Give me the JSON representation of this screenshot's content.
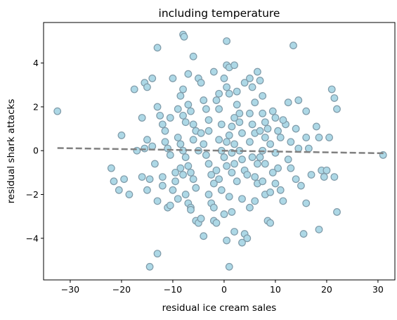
{
  "chart_data": {
    "type": "scatter",
    "title": "including temperature",
    "xlabel": "residual ice cream sales",
    "ylabel": "residual shark attacks",
    "xlim": [
      -35.2,
      33.3
    ],
    "ylim": [
      -5.9,
      5.85
    ],
    "xticks": [
      -30,
      -20,
      -10,
      0,
      10,
      20,
      30
    ],
    "xtick_labels": [
      "−30",
      "−20",
      "−10",
      "0",
      "10",
      "20",
      "30"
    ],
    "yticks": [
      -4,
      -2,
      0,
      2,
      4
    ],
    "ytick_labels": [
      "−4",
      "−2",
      "0",
      "2",
      "4"
    ],
    "grid": false,
    "legend": "none",
    "marker_fill": "#add8e6",
    "marker_edge": "#7f9aa8",
    "trend_color": "#808080",
    "trend_line": {
      "x": [
        -32.5,
        31.5
      ],
      "y": [
        0.12,
        -0.12
      ]
    },
    "points": [
      [
        -32.5,
        1.8
      ],
      [
        -22,
        -0.8
      ],
      [
        -21.5,
        -1.4
      ],
      [
        -20.5,
        -1.8
      ],
      [
        -19.5,
        -1.3
      ],
      [
        -20,
        0.7
      ],
      [
        -18.5,
        -2.0
      ],
      [
        -17.5,
        2.8
      ],
      [
        -16,
        1.5
      ],
      [
        -15.5,
        3.1
      ],
      [
        -15,
        2.9
      ],
      [
        -14,
        3.3
      ],
      [
        -13,
        4.7
      ],
      [
        -15,
        0.5
      ],
      [
        -15.5,
        0.1
      ],
      [
        -16,
        -1.2
      ],
      [
        -15,
        -1.8
      ],
      [
        -14.5,
        -1.3
      ],
      [
        -14,
        0.2
      ],
      [
        -13.5,
        -0.6
      ],
      [
        -13,
        2.0
      ],
      [
        -12.5,
        1.6
      ],
      [
        -12,
        1.2
      ],
      [
        -11.5,
        0.9
      ],
      [
        -11,
        0.1
      ],
      [
        -10.5,
        -0.2
      ],
      [
        -10,
        3.3
      ],
      [
        -13,
        -2.3
      ],
      [
        -12,
        -1.6
      ],
      [
        -11,
        -2.6
      ],
      [
        -10.5,
        -2.5
      ],
      [
        -10,
        -1.8
      ],
      [
        -9.5,
        -1.4
      ],
      [
        -9,
        -2.2
      ],
      [
        -13,
        -4.7
      ],
      [
        -14.5,
        -5.3
      ],
      [
        -8,
        5.3
      ],
      [
        -7.8,
        5.2
      ],
      [
        -6,
        4.3
      ],
      [
        -7,
        3.5
      ],
      [
        -8,
        2.8
      ],
      [
        -8.5,
        2.5
      ],
      [
        -9,
        1.9
      ],
      [
        -8,
        1.6
      ],
      [
        -7.5,
        1.3
      ],
      [
        -7,
        2.1
      ],
      [
        -6.5,
        1.8
      ],
      [
        -6,
        1.2
      ],
      [
        -5.5,
        0.9
      ],
      [
        -9,
        0.6
      ],
      [
        -8.5,
        0.3
      ],
      [
        -8,
        0.0
      ],
      [
        -7.5,
        -0.3
      ],
      [
        -7,
        -0.7
      ],
      [
        -6.5,
        -1.0
      ],
      [
        -6,
        -1.3
      ],
      [
        -5.5,
        -1.7
      ],
      [
        -8.5,
        -0.8
      ],
      [
        -8,
        -1.1
      ],
      [
        -7.5,
        -2.0
      ],
      [
        -7,
        -2.4
      ],
      [
        -6.5,
        -2.6
      ],
      [
        -5.5,
        -3.2
      ],
      [
        -5,
        -3.3
      ],
      [
        -4,
        -3.9
      ],
      [
        -5,
        3.3
      ],
      [
        -4.5,
        3.1
      ],
      [
        -4,
        2.3
      ],
      [
        -3.5,
        1.9
      ],
      [
        -3,
        1.4
      ],
      [
        -4.5,
        0.8
      ],
      [
        -4,
        0.3
      ],
      [
        -3.5,
        -0.2
      ],
      [
        -3,
        -0.6
      ],
      [
        -2.5,
        -1.1
      ],
      [
        -2,
        -1.5
      ],
      [
        -3,
        -2.0
      ],
      [
        -2.5,
        -2.4
      ],
      [
        -2,
        -3.2
      ],
      [
        -1.5,
        -3.3
      ],
      [
        -2,
        3.6
      ],
      [
        -1.5,
        2.3
      ],
      [
        -1,
        1.9
      ],
      [
        -0.5,
        1.2
      ],
      [
        -1,
        0.5
      ],
      [
        -0.5,
        0.0
      ],
      [
        0,
        -0.3
      ],
      [
        0.5,
        -0.7
      ],
      [
        -1,
        -1.3
      ],
      [
        -0.5,
        -1.8
      ],
      [
        0.5,
        5.0
      ],
      [
        0.5,
        3.9
      ],
      [
        1,
        3.8
      ],
      [
        2,
        3.9
      ],
      [
        0,
        3.3
      ],
      [
        0.5,
        2.9
      ],
      [
        1,
        2.6
      ],
      [
        2,
        1.5
      ],
      [
        1.5,
        1.1
      ],
      [
        1,
        0.7
      ],
      [
        2,
        0.3
      ],
      [
        1.5,
        -0.1
      ],
      [
        2,
        -0.6
      ],
      [
        1.5,
        -1.0
      ],
      [
        2.5,
        -1.4
      ],
      [
        1,
        -2.1
      ],
      [
        1.5,
        -2.8
      ],
      [
        2,
        -3.7
      ],
      [
        0.5,
        -4.1
      ],
      [
        1,
        -5.3
      ],
      [
        2.5,
        2.1
      ],
      [
        3,
        1.7
      ],
      [
        3.5,
        0.8
      ],
      [
        3,
        0.0
      ],
      [
        3.5,
        -0.4
      ],
      [
        4,
        -0.9
      ],
      [
        4,
        -3.8
      ],
      [
        3.5,
        -4.2
      ],
      [
        4.5,
        -4.0
      ],
      [
        4,
        3.1
      ],
      [
        5,
        3.3
      ],
      [
        5.5,
        2.9
      ],
      [
        6,
        2.2
      ],
      [
        5,
        1.7
      ],
      [
        5.5,
        1.2
      ],
      [
        6,
        0.8
      ],
      [
        5,
        0.4
      ],
      [
        5.5,
        -0.3
      ],
      [
        6,
        -1.2
      ],
      [
        6.5,
        -1.5
      ],
      [
        5,
        -2.6
      ],
      [
        6,
        -2.3
      ],
      [
        6.5,
        3.6
      ],
      [
        7,
        3.2
      ],
      [
        7.5,
        2.5
      ],
      [
        7.5,
        1.7
      ],
      [
        8,
        1.3
      ],
      [
        7,
        0.9
      ],
      [
        8,
        0.6
      ],
      [
        7.5,
        0.0
      ],
      [
        8,
        -0.6
      ],
      [
        7.5,
        -1.4
      ],
      [
        8,
        -2.0
      ],
      [
        8.5,
        -3.2
      ],
      [
        9,
        -3.3
      ],
      [
        9.5,
        1.8
      ],
      [
        10,
        1.5
      ],
      [
        9,
        0.3
      ],
      [
        10,
        -0.1
      ],
      [
        10.5,
        -0.8
      ],
      [
        9.5,
        -1.0
      ],
      [
        10,
        -1.5
      ],
      [
        11,
        -1.8
      ],
      [
        11.5,
        -2.3
      ],
      [
        11,
        0.6
      ],
      [
        12,
        1.2
      ],
      [
        12.5,
        2.2
      ],
      [
        13,
        0.4
      ],
      [
        12.5,
        -0.4
      ],
      [
        13,
        -0.8
      ],
      [
        13.5,
        4.8
      ],
      [
        14.5,
        2.3
      ],
      [
        14,
        1.0
      ],
      [
        14.5,
        0.1
      ],
      [
        14,
        -1.3
      ],
      [
        15,
        -1.6
      ],
      [
        15.5,
        -3.8
      ],
      [
        16,
        1.8
      ],
      [
        16,
        0.6
      ],
      [
        16.5,
        0.1
      ],
      [
        16,
        -2.4
      ],
      [
        17,
        -1.1
      ],
      [
        18,
        1.1
      ],
      [
        18.5,
        0.6
      ],
      [
        18.5,
        -3.6
      ],
      [
        19,
        -0.9
      ],
      [
        19.5,
        -1.2
      ],
      [
        20,
        -0.9
      ],
      [
        20.5,
        0.6
      ],
      [
        21,
        2.8
      ],
      [
        21.5,
        2.4
      ],
      [
        22,
        1.9
      ],
      [
        21.5,
        -1.2
      ],
      [
        22,
        -2.8
      ],
      [
        31,
        -0.2
      ],
      [
        -4.5,
        -3.1
      ],
      [
        -9.5,
        -1.0
      ],
      [
        -10.5,
        1.5
      ],
      [
        -6,
        0.5
      ],
      [
        -3,
        0.9
      ],
      [
        -1,
        2.6
      ],
      [
        3,
        1.3
      ],
      [
        4.5,
        -1.1
      ],
      [
        6.5,
        -0.6
      ],
      [
        8.5,
        1.0
      ],
      [
        -17,
        0.0
      ],
      [
        -12,
        -1.2
      ],
      [
        -2,
        -2.6
      ],
      [
        0,
        -2.9
      ],
      [
        9,
        -1.9
      ],
      [
        11.5,
        1.4
      ],
      [
        -5,
        0.0
      ],
      [
        2.5,
        2.7
      ],
      [
        -6.5,
        -2.7
      ],
      [
        10.5,
        0.9
      ],
      [
        -1.5,
        -0.9
      ],
      [
        0.5,
        0.4
      ],
      [
        7,
        -0.3
      ],
      [
        -11.5,
        0.4
      ],
      [
        3.5,
        -2.2
      ]
    ]
  }
}
